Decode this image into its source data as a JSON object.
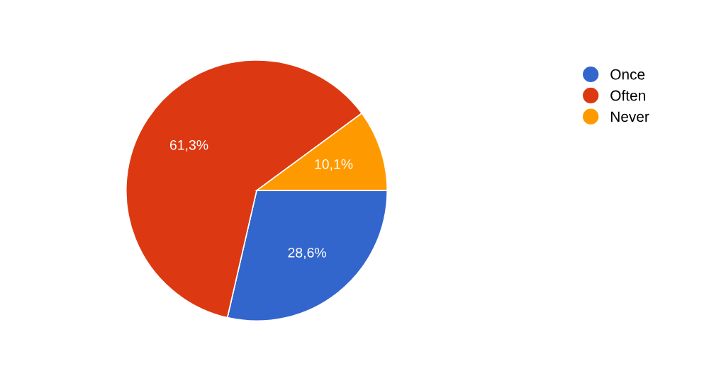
{
  "chart_data": {
    "type": "pie",
    "categories": [
      "Once",
      "Often",
      "Never"
    ],
    "values": [
      28.6,
      61.3,
      10.1
    ],
    "value_labels": [
      "28,6%",
      "61,3%",
      "10,1%"
    ],
    "colors": [
      "#3366cc",
      "#dc3912",
      "#ff9900"
    ],
    "legend": "top right"
  }
}
